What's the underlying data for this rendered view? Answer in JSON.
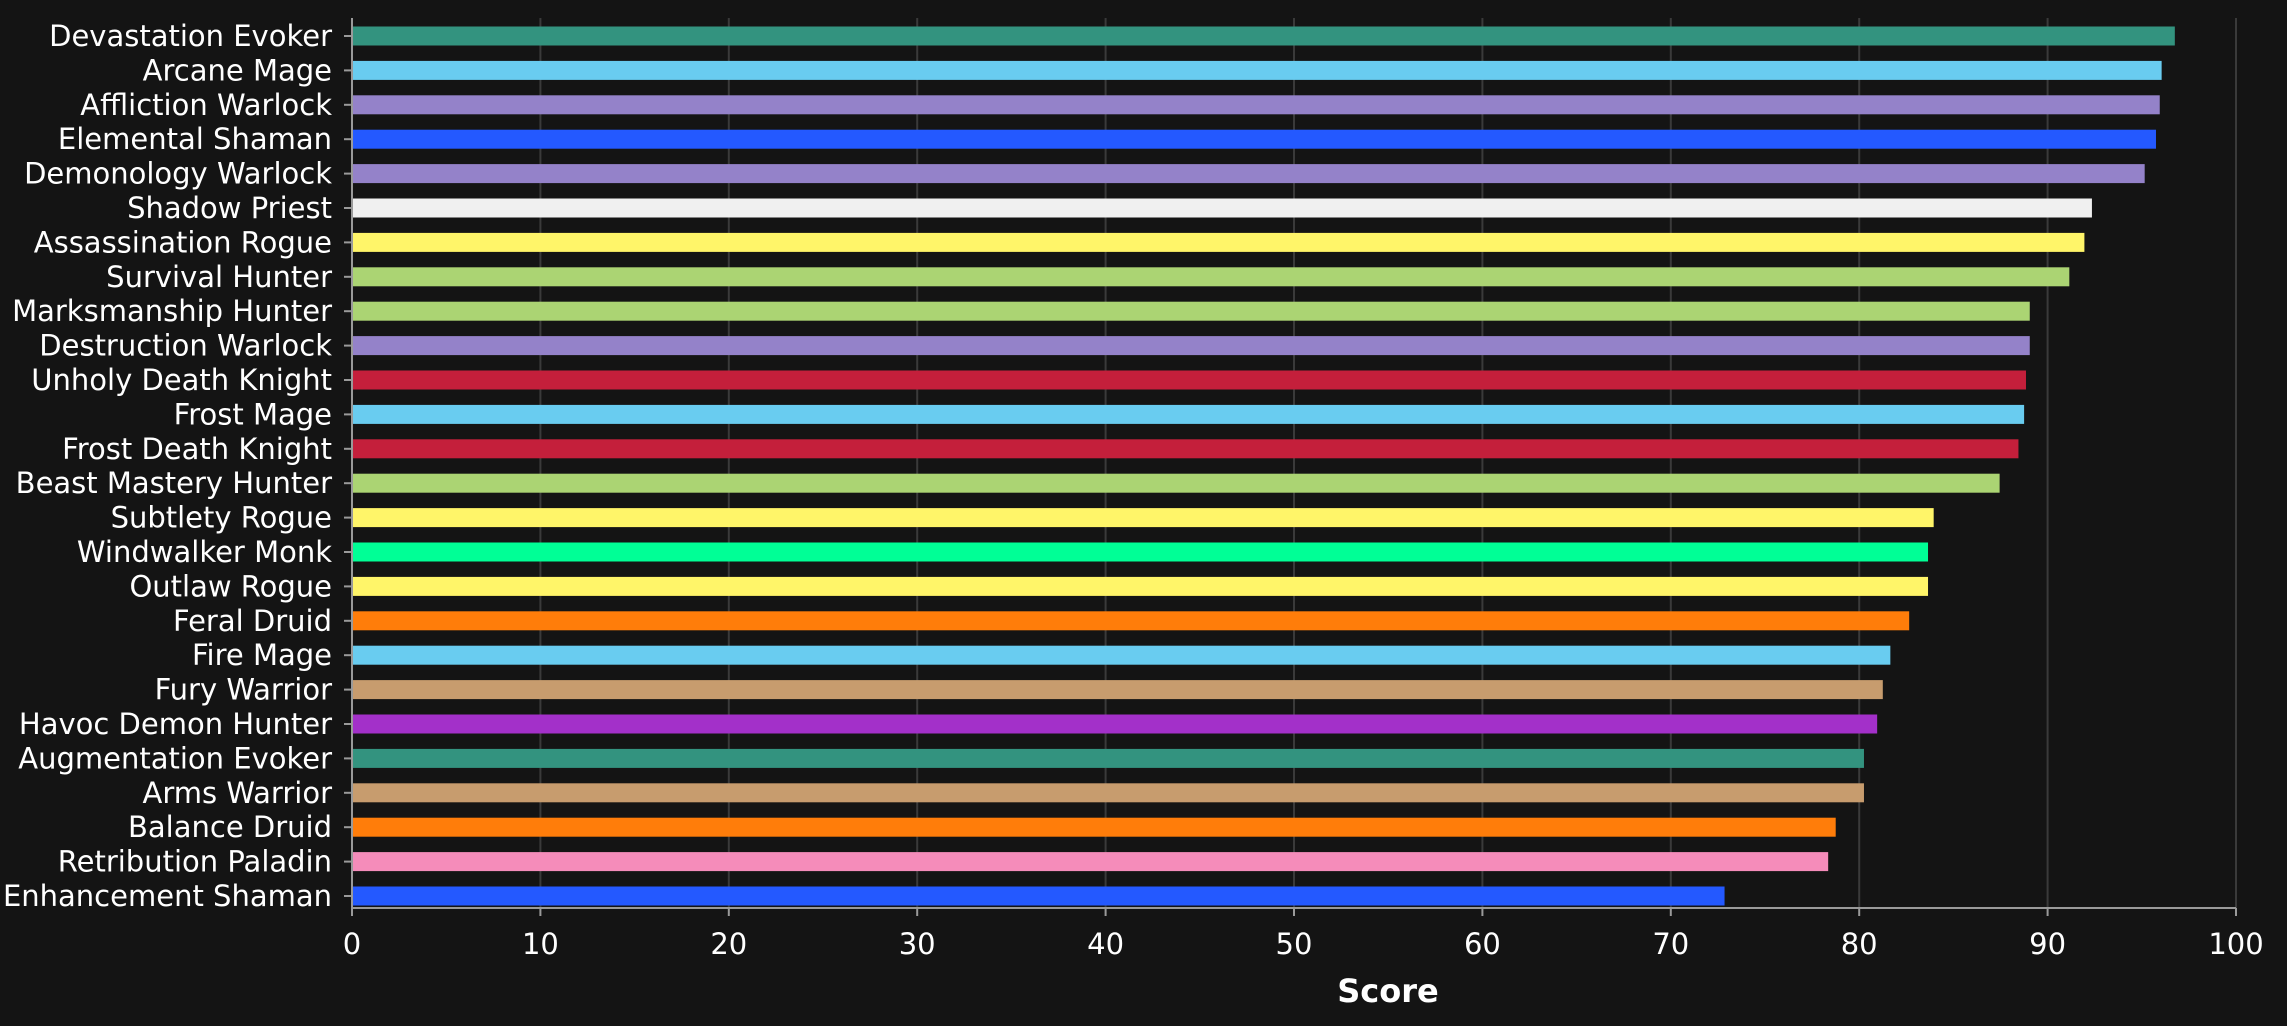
{
  "chart_data": {
    "type": "bar",
    "orientation": "horizontal",
    "title": "",
    "xlabel": "Score",
    "ylabel": "",
    "xlim": [
      0,
      100
    ],
    "x_ticks": [
      0,
      10,
      20,
      30,
      40,
      50,
      60,
      70,
      80,
      90,
      100
    ],
    "x_tick_labels": [
      "0",
      "10",
      "20",
      "30",
      "40",
      "50",
      "60",
      "70",
      "80",
      "90",
      "100"
    ],
    "grid": "vertical",
    "legend": "none",
    "colors": {
      "background": "#141414",
      "grid": "#3a3a3a",
      "axis": "#9a9a9a",
      "text": "#ffffff"
    },
    "bars": [
      {
        "label": "Devastation Evoker",
        "value": 96.7,
        "color": "#33937f"
      },
      {
        "label": "Arcane Mage",
        "value": 96.0,
        "color": "#69ccf0"
      },
      {
        "label": "Affliction Warlock",
        "value": 95.9,
        "color": "#9482c9"
      },
      {
        "label": "Elemental Shaman",
        "value": 95.7,
        "color": "#2459ff"
      },
      {
        "label": "Demonology Warlock",
        "value": 95.1,
        "color": "#9482c9"
      },
      {
        "label": "Shadow Priest",
        "value": 92.3,
        "color": "#f0f0f0"
      },
      {
        "label": "Assassination Rogue",
        "value": 91.9,
        "color": "#fff569"
      },
      {
        "label": "Survival Hunter",
        "value": 91.1,
        "color": "#abd473"
      },
      {
        "label": "Marksmanship Hunter",
        "value": 89.0,
        "color": "#abd473"
      },
      {
        "label": "Destruction Warlock",
        "value": 89.0,
        "color": "#9482c9"
      },
      {
        "label": "Unholy Death Knight",
        "value": 88.8,
        "color": "#c41f3b"
      },
      {
        "label": "Frost Mage",
        "value": 88.7,
        "color": "#69ccf0"
      },
      {
        "label": "Frost Death Knight",
        "value": 88.4,
        "color": "#c41f3b"
      },
      {
        "label": "Beast Mastery Hunter",
        "value": 87.4,
        "color": "#abd473"
      },
      {
        "label": "Subtlety Rogue",
        "value": 83.9,
        "color": "#fff569"
      },
      {
        "label": "Windwalker Monk",
        "value": 83.6,
        "color": "#00ff96"
      },
      {
        "label": "Outlaw Rogue",
        "value": 83.6,
        "color": "#fff569"
      },
      {
        "label": "Feral Druid",
        "value": 82.6,
        "color": "#ff7d0a"
      },
      {
        "label": "Fire Mage",
        "value": 81.6,
        "color": "#69ccf0"
      },
      {
        "label": "Fury Warrior",
        "value": 81.2,
        "color": "#c79c6e"
      },
      {
        "label": "Havoc Demon Hunter",
        "value": 80.9,
        "color": "#a330c9"
      },
      {
        "label": "Augmentation Evoker",
        "value": 80.2,
        "color": "#33937f"
      },
      {
        "label": "Arms Warrior",
        "value": 80.2,
        "color": "#c79c6e"
      },
      {
        "label": "Balance Druid",
        "value": 78.7,
        "color": "#ff7d0a"
      },
      {
        "label": "Retribution Paladin",
        "value": 78.3,
        "color": "#f58cba"
      },
      {
        "label": "Enhancement Shaman",
        "value": 72.8,
        "color": "#2459ff"
      }
    ]
  }
}
